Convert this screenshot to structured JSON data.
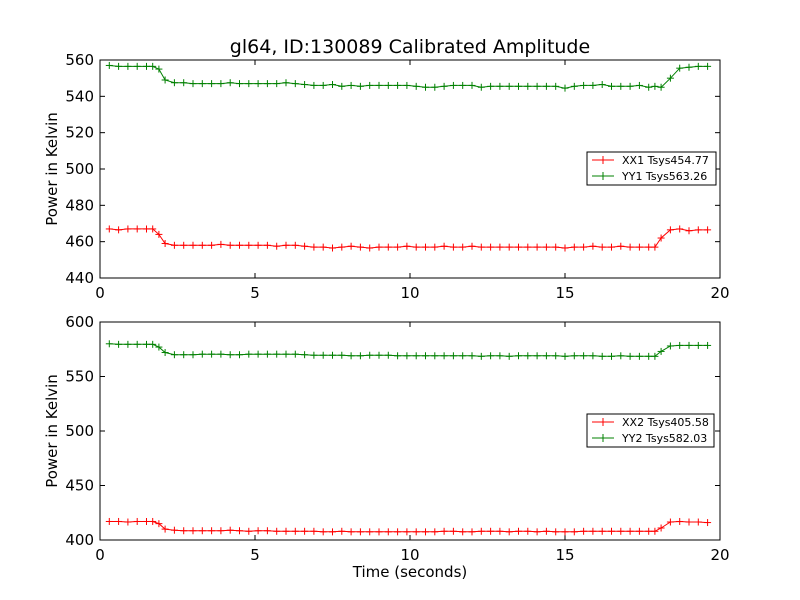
{
  "figure": {
    "title": "gl64, ID:130089 Calibrated Amplitude",
    "xlabel": "Time (seconds)"
  },
  "chart_data": [
    {
      "type": "line",
      "ylabel": "Power in Kelvin",
      "xlim": [
        0,
        20
      ],
      "ylim": [
        440,
        560
      ],
      "x_ticks": [
        "0",
        "5",
        "10",
        "15",
        "20"
      ],
      "y_ticks": [
        "440",
        "460",
        "480",
        "500",
        "520",
        "540",
        "560"
      ],
      "legend_position": "center-right",
      "x": [
        0.3,
        0.6,
        0.9,
        1.2,
        1.5,
        1.7,
        1.9,
        2.1,
        2.4,
        2.7,
        3.0,
        3.3,
        3.6,
        3.9,
        4.2,
        4.5,
        4.8,
        5.1,
        5.4,
        5.7,
        6.0,
        6.3,
        6.6,
        6.9,
        7.2,
        7.5,
        7.8,
        8.1,
        8.4,
        8.7,
        9.0,
        9.3,
        9.6,
        9.9,
        10.2,
        10.5,
        10.8,
        11.1,
        11.4,
        11.7,
        12.0,
        12.3,
        12.6,
        12.9,
        13.2,
        13.5,
        13.8,
        14.1,
        14.4,
        14.7,
        15.0,
        15.3,
        15.6,
        15.9,
        16.2,
        16.5,
        16.8,
        17.1,
        17.4,
        17.7,
        17.9,
        18.1,
        18.4,
        18.7,
        19.0,
        19.3,
        19.6
      ],
      "series": [
        {
          "name": "XX1 Tsys454.77",
          "color": "#ff0000",
          "values": [
            467,
            466.5,
            467,
            467,
            467,
            467,
            464,
            459,
            458,
            458,
            458,
            458,
            458,
            458.5,
            458,
            458,
            458,
            458,
            458,
            457.5,
            458,
            458,
            457.5,
            457,
            457,
            456.5,
            457,
            457.5,
            457,
            456.5,
            457,
            457,
            457,
            457.5,
            457,
            457,
            457,
            457.5,
            457,
            457,
            457.5,
            457,
            457,
            457,
            457,
            457,
            457,
            457,
            457,
            457,
            456.5,
            457,
            457,
            457.5,
            457,
            457,
            457.5,
            457,
            457,
            457,
            457,
            462,
            466.5,
            467,
            466,
            466.5,
            466.5
          ]
        },
        {
          "name": "YY1 Tsys563.26",
          "color": "#008000",
          "values": [
            557,
            556.5,
            556.5,
            556.5,
            556.5,
            556.5,
            555,
            549,
            547.5,
            547.5,
            547,
            547,
            547,
            547,
            547.5,
            547,
            547,
            547,
            547,
            547,
            547.5,
            547,
            546.5,
            546,
            546,
            546.5,
            545.5,
            546,
            545.5,
            546,
            546,
            546,
            546,
            546,
            545.5,
            545,
            545,
            545.5,
            546,
            546,
            546,
            545,
            545.5,
            545.5,
            545.5,
            545.5,
            545.5,
            545.5,
            545.5,
            545.5,
            544.5,
            545.5,
            546,
            546,
            546.5,
            545.5,
            545.5,
            545.5,
            546,
            545,
            545.5,
            545,
            550,
            555.5,
            556,
            556.5,
            556.5
          ]
        }
      ]
    },
    {
      "type": "line",
      "ylabel": "Power in Kelvin",
      "xlim": [
        0,
        20
      ],
      "ylim": [
        400,
        600
      ],
      "x_ticks": [
        "0",
        "5",
        "10",
        "15",
        "20"
      ],
      "y_ticks": [
        "400",
        "450",
        "500",
        "550",
        "600"
      ],
      "legend_position": "center-right",
      "x": [
        0.3,
        0.6,
        0.9,
        1.2,
        1.5,
        1.7,
        1.9,
        2.1,
        2.4,
        2.7,
        3.0,
        3.3,
        3.6,
        3.9,
        4.2,
        4.5,
        4.8,
        5.1,
        5.4,
        5.7,
        6.0,
        6.3,
        6.6,
        6.9,
        7.2,
        7.5,
        7.8,
        8.1,
        8.4,
        8.7,
        9.0,
        9.3,
        9.6,
        9.9,
        10.2,
        10.5,
        10.8,
        11.1,
        11.4,
        11.7,
        12.0,
        12.3,
        12.6,
        12.9,
        13.2,
        13.5,
        13.8,
        14.1,
        14.4,
        14.7,
        15.0,
        15.3,
        15.6,
        15.9,
        16.2,
        16.5,
        16.8,
        17.1,
        17.4,
        17.7,
        17.9,
        18.1,
        18.4,
        18.7,
        19.0,
        19.3,
        19.6
      ],
      "series": [
        {
          "name": "XX2 Tsys405.58",
          "color": "#ff0000",
          "values": [
            417,
            417,
            416.5,
            417,
            417,
            417,
            415,
            410,
            409,
            408.5,
            408.5,
            408.5,
            408.5,
            408.5,
            409,
            408.5,
            408,
            408.5,
            408.5,
            408,
            408,
            408,
            408,
            408,
            407.5,
            407.5,
            408,
            407.5,
            407.5,
            407.5,
            407.5,
            407.5,
            407.5,
            407.5,
            407.5,
            407.5,
            407.5,
            408,
            408,
            407.5,
            407.5,
            408,
            408,
            408,
            407.5,
            408,
            408,
            407.5,
            408,
            407.5,
            407.5,
            407.5,
            408,
            408,
            408,
            408,
            408,
            408,
            408,
            408,
            408,
            411,
            416.5,
            417,
            416.5,
            416.5,
            416
          ]
        },
        {
          "name": "YY2 Tsys582.03",
          "color": "#008000",
          "values": [
            580,
            579.5,
            579.5,
            579.5,
            579.5,
            579.5,
            577,
            572,
            570,
            570,
            570,
            570.5,
            570.5,
            570.5,
            570,
            570,
            570.5,
            570.5,
            570.5,
            570.5,
            570.5,
            570.5,
            570,
            569.5,
            569.5,
            569.5,
            569.5,
            569,
            569,
            569.5,
            569.5,
            569.5,
            569,
            569,
            569,
            569,
            569,
            569,
            569,
            569,
            569,
            568.5,
            569,
            569,
            568.5,
            569,
            569,
            569,
            569,
            569,
            568.5,
            569,
            569,
            569,
            568.5,
            568.5,
            569,
            568.5,
            568.5,
            568.5,
            568.5,
            573,
            578,
            578.5,
            578.5,
            578.5,
            578.5
          ]
        }
      ]
    }
  ]
}
